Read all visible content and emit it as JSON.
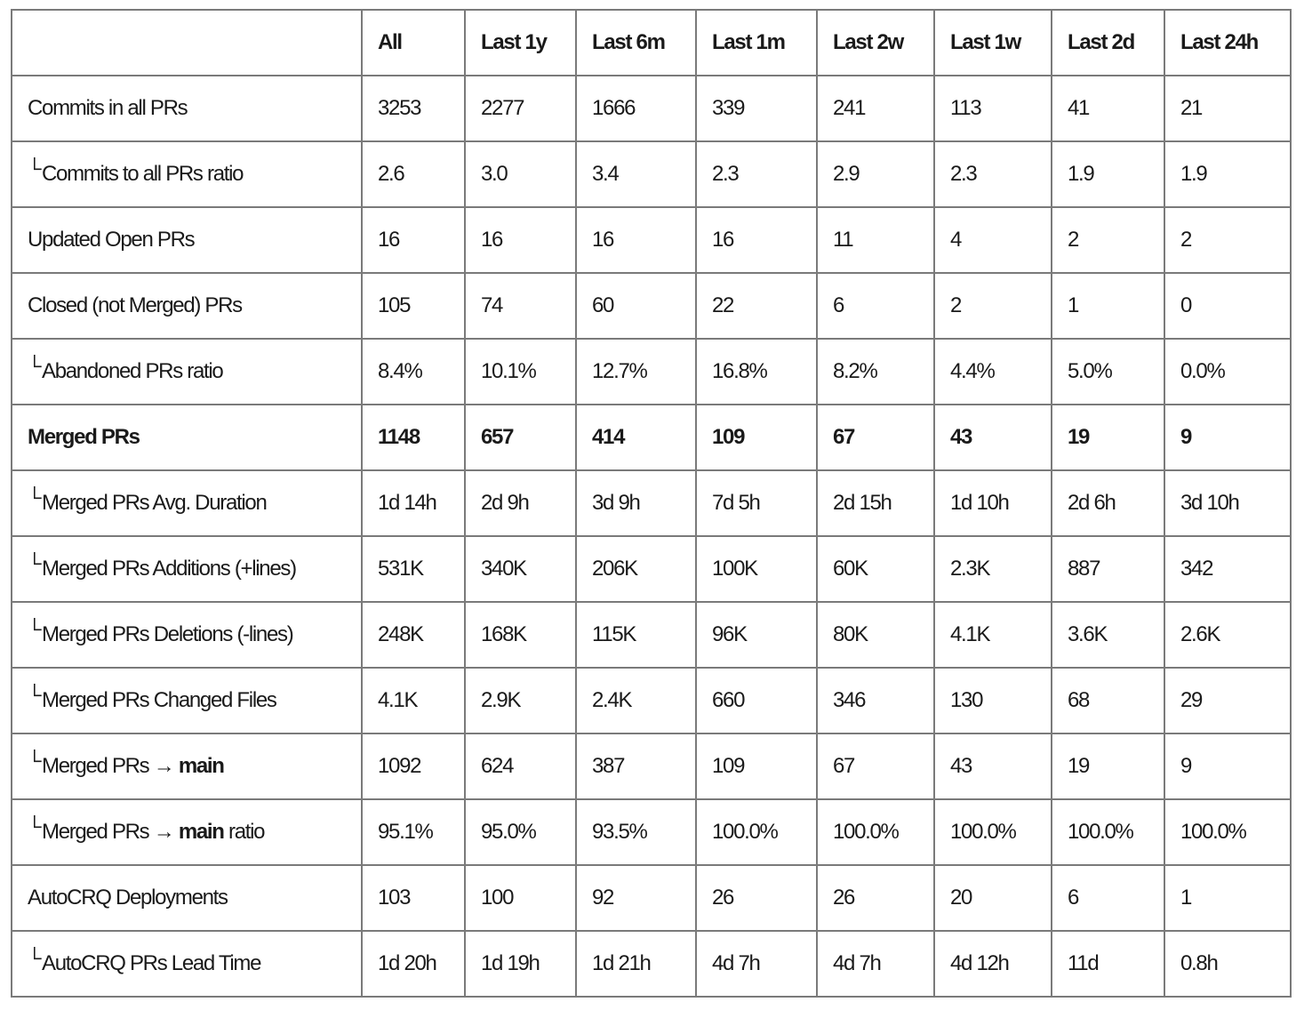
{
  "columns": [
    "All",
    "Last 1y",
    "Last 6m",
    "Last 1m",
    "Last 2w",
    "Last 1w",
    "Last 2d",
    "Last 24h"
  ],
  "sub_marker": "└",
  "arrow": "→",
  "rows": [
    {
      "label": "Commits in all PRs",
      "sub": false,
      "bold": false,
      "values": [
        "3253",
        "2277",
        "1666",
        "339",
        "241",
        "113",
        "41",
        "21"
      ]
    },
    {
      "label": "Commits to all PRs ratio",
      "sub": true,
      "bold": false,
      "values": [
        "2.6",
        "3.0",
        "3.4",
        "2.3",
        "2.9",
        "2.3",
        "1.9",
        "1.9"
      ]
    },
    {
      "label": "Updated Open PRs",
      "sub": false,
      "bold": false,
      "values": [
        "16",
        "16",
        "16",
        "16",
        "11",
        "4",
        "2",
        "2"
      ]
    },
    {
      "label": "Closed (not Merged) PRs",
      "sub": false,
      "bold": false,
      "values": [
        "105",
        "74",
        "60",
        "22",
        "6",
        "2",
        "1",
        "0"
      ]
    },
    {
      "label": "Abandoned PRs ratio",
      "sub": true,
      "bold": false,
      "values": [
        "8.4%",
        "10.1%",
        "12.7%",
        "16.8%",
        "8.2%",
        "4.4%",
        "5.0%",
        "0.0%"
      ]
    },
    {
      "label": "Merged PRs",
      "sub": false,
      "bold": true,
      "values": [
        "1148",
        "657",
        "414",
        "109",
        "67",
        "43",
        "19",
        "9"
      ]
    },
    {
      "label": "Merged PRs Avg. Duration",
      "sub": true,
      "bold": false,
      "values": [
        "1d 14h",
        "2d 9h",
        "3d 9h",
        "7d 5h",
        "2d 15h",
        "1d 10h",
        "2d 6h",
        "3d 10h"
      ]
    },
    {
      "label": "Merged PRs Additions (+lines)",
      "sub": true,
      "bold": false,
      "values": [
        "531K",
        "340K",
        "206K",
        "100K",
        "60K",
        "2.3K",
        "887",
        "342"
      ]
    },
    {
      "label": "Merged PRs Deletions (-lines)",
      "sub": true,
      "bold": false,
      "values": [
        "248K",
        "168K",
        "115K",
        "96K",
        "80K",
        "4.1K",
        "3.6K",
        "2.6K"
      ]
    },
    {
      "label": "Merged PRs Changed Files",
      "sub": true,
      "bold": false,
      "values": [
        "4.1K",
        "2.9K",
        "2.4K",
        "660",
        "346",
        "130",
        "68",
        "29"
      ]
    },
    {
      "label": "Merged PRs",
      "label_bold": "main",
      "label_suffix": "",
      "sub": true,
      "bold": false,
      "values": [
        "1092",
        "624",
        "387",
        "109",
        "67",
        "43",
        "19",
        "9"
      ]
    },
    {
      "label": "Merged PRs",
      "label_bold": "main",
      "label_suffix": " ratio",
      "sub": true,
      "bold": false,
      "values": [
        "95.1%",
        "95.0%",
        "93.5%",
        "100.0%",
        "100.0%",
        "100.0%",
        "100.0%",
        "100.0%"
      ]
    },
    {
      "label": "AutoCRQ Deployments",
      "sub": false,
      "bold": false,
      "values": [
        "103",
        "100",
        "92",
        "26",
        "26",
        "20",
        "6",
        "1"
      ]
    },
    {
      "label": "AutoCRQ PRs Lead Time",
      "sub": true,
      "bold": false,
      "values": [
        "1d 20h",
        "1d 19h",
        "1d 21h",
        "4d 7h",
        "4d 7h",
        "4d 12h",
        "11d",
        "0.8h"
      ]
    }
  ]
}
